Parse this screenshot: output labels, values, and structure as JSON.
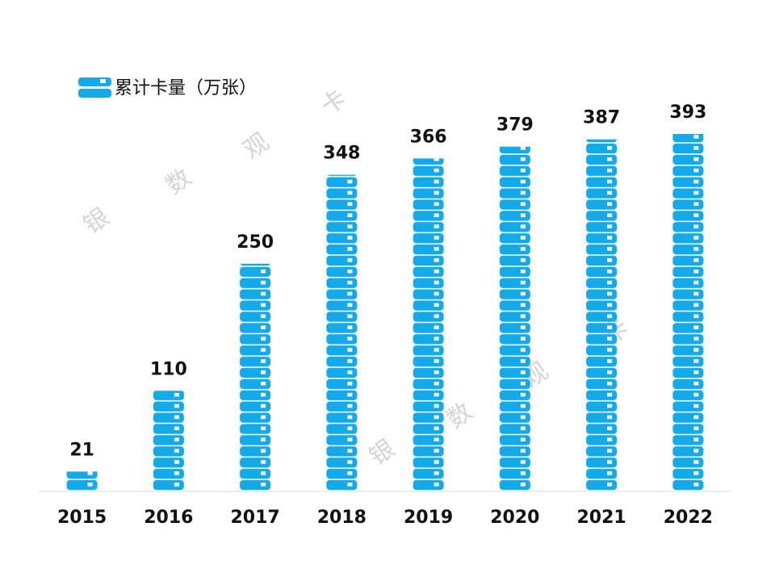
{
  "chart_data": {
    "type": "bar",
    "legend": "累计卡量（万张）",
    "categories": [
      "2015",
      "2016",
      "2017",
      "2018",
      "2019",
      "2020",
      "2021",
      "2022"
    ],
    "values": [
      21,
      110,
      250,
      348,
      366,
      379,
      387,
      393
    ],
    "color": "#14aaea",
    "watermark": [
      "银",
      "数",
      "观",
      "卡"
    ]
  }
}
